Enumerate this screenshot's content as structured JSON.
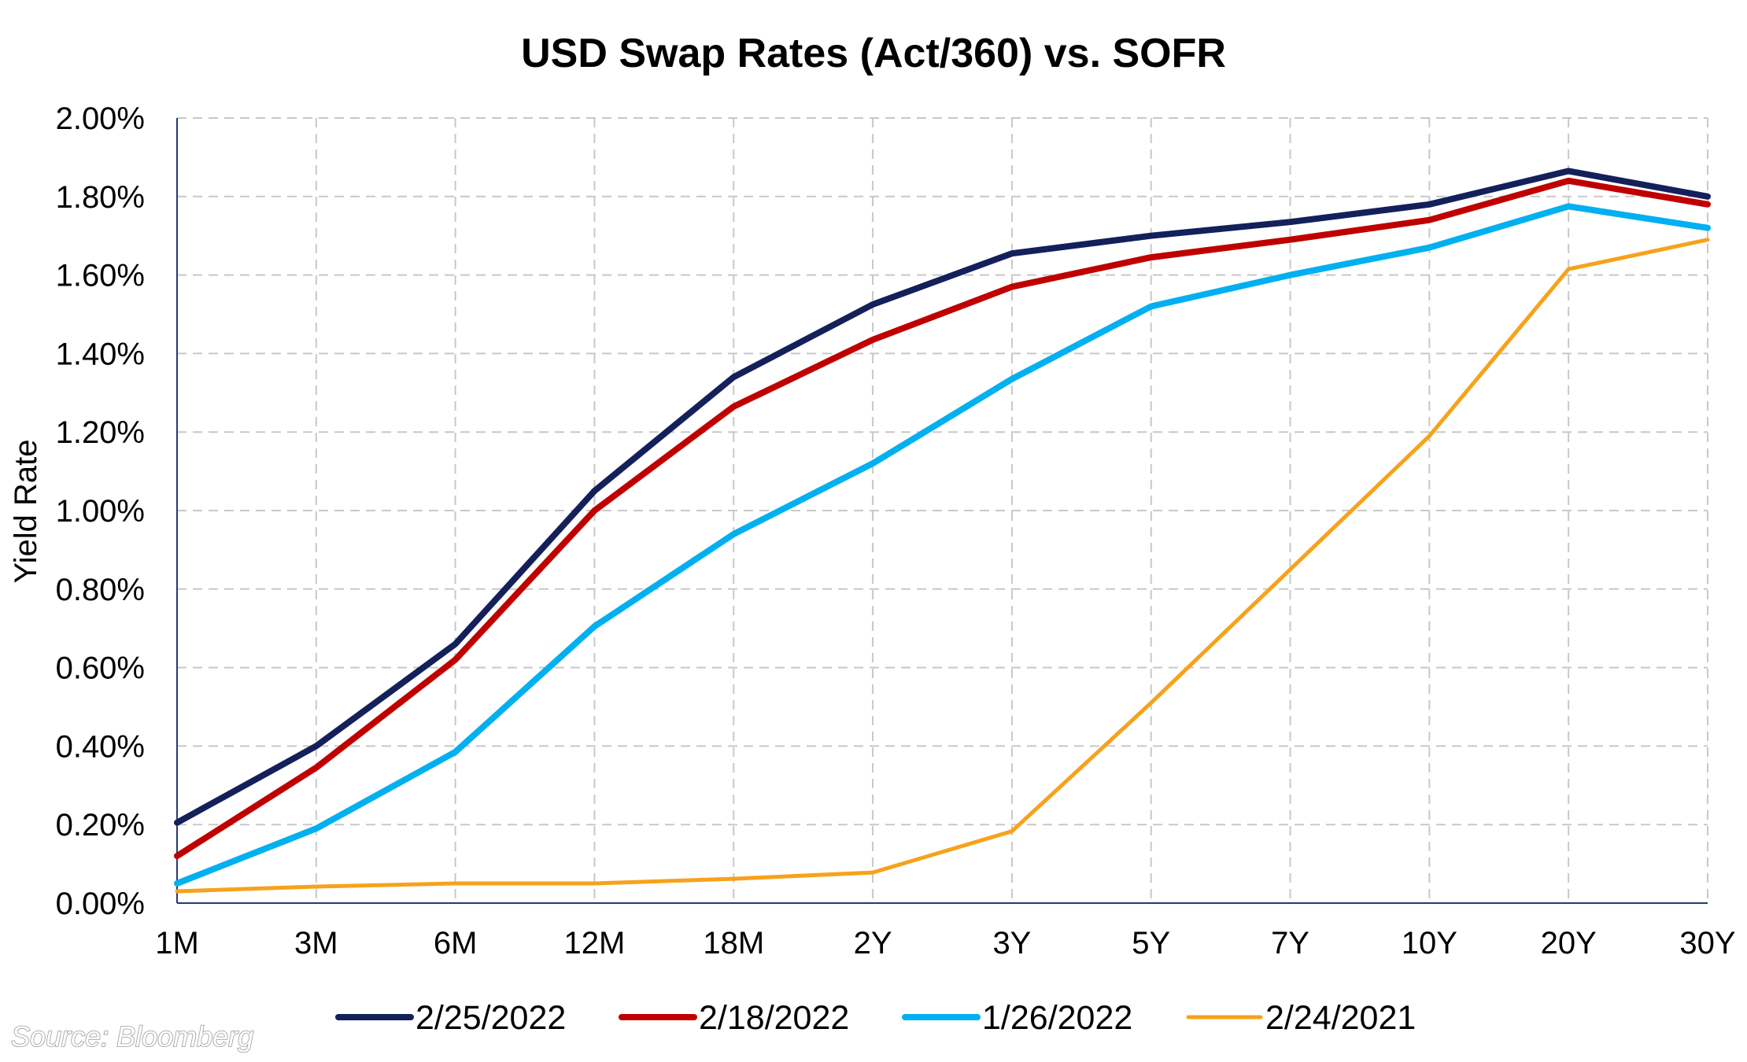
{
  "chart_data": {
    "type": "line",
    "title": "USD Swap Rates (Act/360) vs. SOFR",
    "xlabel": "",
    "ylabel": "Yield Rate",
    "categories": [
      "1M",
      "3M",
      "6M",
      "12M",
      "18M",
      "2Y",
      "3Y",
      "5Y",
      "7Y",
      "10Y",
      "20Y",
      "30Y"
    ],
    "ylim": [
      0,
      2.0
    ],
    "yticks": [
      "0.00%",
      "0.20%",
      "0.40%",
      "0.60%",
      "0.80%",
      "1.00%",
      "1.20%",
      "1.40%",
      "1.60%",
      "1.80%",
      "2.00%"
    ],
    "ytick_values": [
      0,
      0.2,
      0.4,
      0.6,
      0.8,
      1.0,
      1.2,
      1.4,
      1.6,
      1.8,
      2.0
    ],
    "grid": true,
    "legend_position": "bottom",
    "series": [
      {
        "name": "2/25/2022",
        "color": "#14205a",
        "line_width": "thick",
        "values": [
          0.205,
          0.4,
          0.66,
          1.05,
          1.34,
          1.525,
          1.655,
          1.7,
          1.735,
          1.78,
          1.865,
          1.8
        ]
      },
      {
        "name": "2/18/2022",
        "color": "#c00000",
        "line_width": "thick",
        "values": [
          0.12,
          0.345,
          0.62,
          1.0,
          1.265,
          1.435,
          1.57,
          1.645,
          1.69,
          1.74,
          1.84,
          1.78
        ]
      },
      {
        "name": "1/26/2022",
        "color": "#00b0f0",
        "line_width": "thick",
        "values": [
          0.05,
          0.19,
          0.385,
          0.705,
          0.94,
          1.12,
          1.335,
          1.52,
          1.6,
          1.67,
          1.775,
          1.72
        ]
      },
      {
        "name": "2/24/2021",
        "color": "#f7a21b",
        "line_width": "thin",
        "values": [
          0.03,
          0.042,
          0.05,
          0.05,
          0.062,
          0.078,
          0.183,
          0.51,
          0.85,
          1.19,
          1.615,
          1.69
        ]
      }
    ]
  },
  "source": {
    "text": "Source: Bloomberg"
  }
}
